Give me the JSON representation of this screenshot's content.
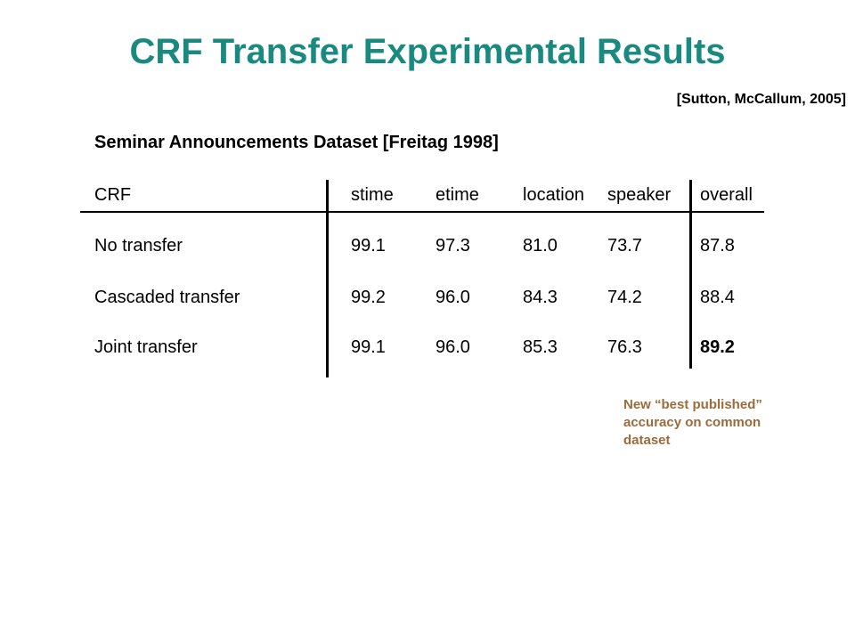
{
  "slide": {
    "title": "CRF Transfer Experimental Results",
    "citation": "[Sutton, McCallum, 2005]",
    "dataset_heading": "Seminar Announcements Dataset [Freitag 1998]",
    "annotation": "New “best published” accuracy on common dataset",
    "colors": {
      "title": "#1a8a80",
      "annotation": "#9c6b3b"
    }
  },
  "table": {
    "headers": [
      "CRF",
      "stime",
      "etime",
      "location",
      "speaker",
      "overall"
    ],
    "rows": [
      {
        "label": "No transfer",
        "values": [
          "99.1",
          "97.3",
          "81.0",
          "73.7",
          "87.8"
        ]
      },
      {
        "label": "Cascaded transfer",
        "values": [
          "99.2",
          "96.0",
          "84.3",
          "74.2",
          "88.4"
        ]
      },
      {
        "label": "Joint transfer",
        "values": [
          "99.1",
          "96.0",
          "85.3",
          "76.3",
          "89.2"
        ]
      }
    ],
    "highlighted_value": "89.2"
  }
}
